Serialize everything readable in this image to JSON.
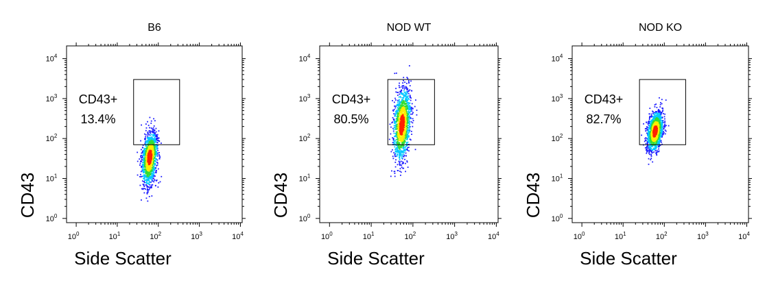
{
  "chart_data": [
    {
      "type": "scatter",
      "title": "B6",
      "xlabel": "Side Scatter",
      "ylabel": "CD43",
      "xscale": "log",
      "yscale": "log",
      "xlim": [
        1,
        10000
      ],
      "ylim": [
        1,
        10000
      ],
      "x_ticks": [
        1,
        10,
        100,
        1000,
        10000
      ],
      "y_ticks": [
        1,
        10,
        100,
        1000,
        10000
      ],
      "gate": {
        "name": "CD43+",
        "percent": "13.4%",
        "x_range": [
          25,
          330
        ],
        "y_range": [
          70,
          3000
        ]
      },
      "population": {
        "x_center": 62,
        "x_spread": 0.09,
        "y_center": 35,
        "y_spread": 0.3,
        "y_skew": 0.6
      }
    },
    {
      "type": "scatter",
      "title": "NOD WT",
      "xlabel": "Side Scatter",
      "ylabel": "CD43",
      "xscale": "log",
      "yscale": "log",
      "xlim": [
        1,
        10000
      ],
      "ylim": [
        1,
        10000
      ],
      "x_ticks": [
        1,
        10,
        100,
        1000,
        10000
      ],
      "y_ticks": [
        1,
        10,
        100,
        1000,
        10000
      ],
      "gate": {
        "name": "CD43+",
        "percent": "80.5%",
        "x_range": [
          25,
          330
        ],
        "y_range": [
          70,
          3000
        ]
      },
      "population": {
        "x_center": 55,
        "x_spread": 0.1,
        "y_center": 220,
        "y_spread": 0.45,
        "y_skew": 0.0
      }
    },
    {
      "type": "scatter",
      "title": "NOD KO",
      "xlabel": "Side Scatter",
      "ylabel": "CD43",
      "xscale": "log",
      "yscale": "log",
      "xlim": [
        1,
        10000
      ],
      "ylim": [
        1,
        10000
      ],
      "x_ticks": [
        1,
        10,
        100,
        1000,
        10000
      ],
      "y_ticks": [
        1,
        10,
        100,
        1000,
        10000
      ],
      "gate": {
        "name": "CD43+",
        "percent": "82.7%",
        "x_range": [
          25,
          330
        ],
        "y_range": [
          70,
          3000
        ]
      },
      "population": {
        "x_center": 60,
        "x_spread": 0.09,
        "y_center": 150,
        "y_spread": 0.25,
        "y_skew": 0.0
      }
    }
  ],
  "colors": {
    "density_low": "#1a1aff",
    "density_mid": "#00c8ff",
    "density_midhigh": "#33dd33",
    "density_high": "#ffee00",
    "density_peak": "#ff2200",
    "axes": "#000000"
  }
}
